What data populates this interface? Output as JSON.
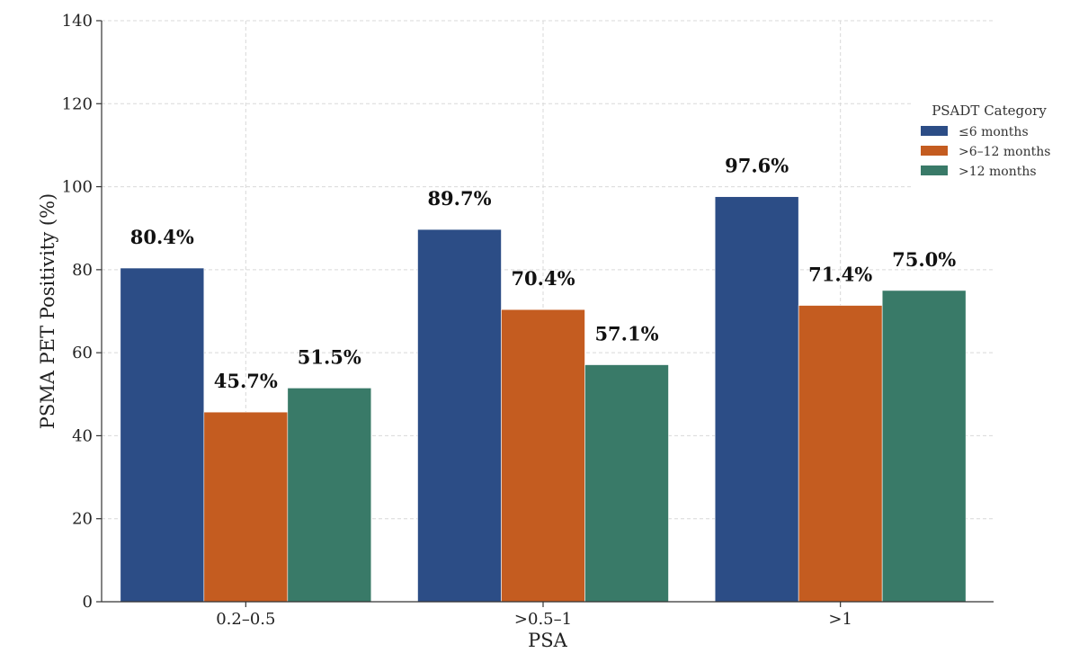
{
  "chart_data": {
    "type": "bar",
    "categories": [
      "0.2–0.5",
      ">0.5–1",
      ">1"
    ],
    "series": [
      {
        "name": "≤6 months",
        "values": [
          80.4,
          89.7,
          97.6
        ],
        "labels": [
          "80.4%",
          "89.7%",
          "97.6%"
        ],
        "color": "#2c4d86"
      },
      {
        "name": ">6–12 months",
        "values": [
          45.7,
          70.4,
          71.4
        ],
        "labels": [
          "45.7%",
          "70.4%",
          "71.4%"
        ],
        "color": "#c45c20"
      },
      {
        "name": ">12 months",
        "values": [
          51.5,
          57.1,
          75.0
        ],
        "labels": [
          "51.5%",
          "57.1%",
          "75.0%"
        ],
        "color": "#397a68"
      }
    ],
    "xlabel": "PSA",
    "ylabel": "PSMA PET Positivity (%)",
    "ylim": [
      0,
      140
    ],
    "yticks": [
      0,
      20,
      40,
      60,
      80,
      100,
      120,
      140
    ],
    "grid": true,
    "legend": {
      "title": "PSADT Category",
      "position": "right"
    }
  }
}
